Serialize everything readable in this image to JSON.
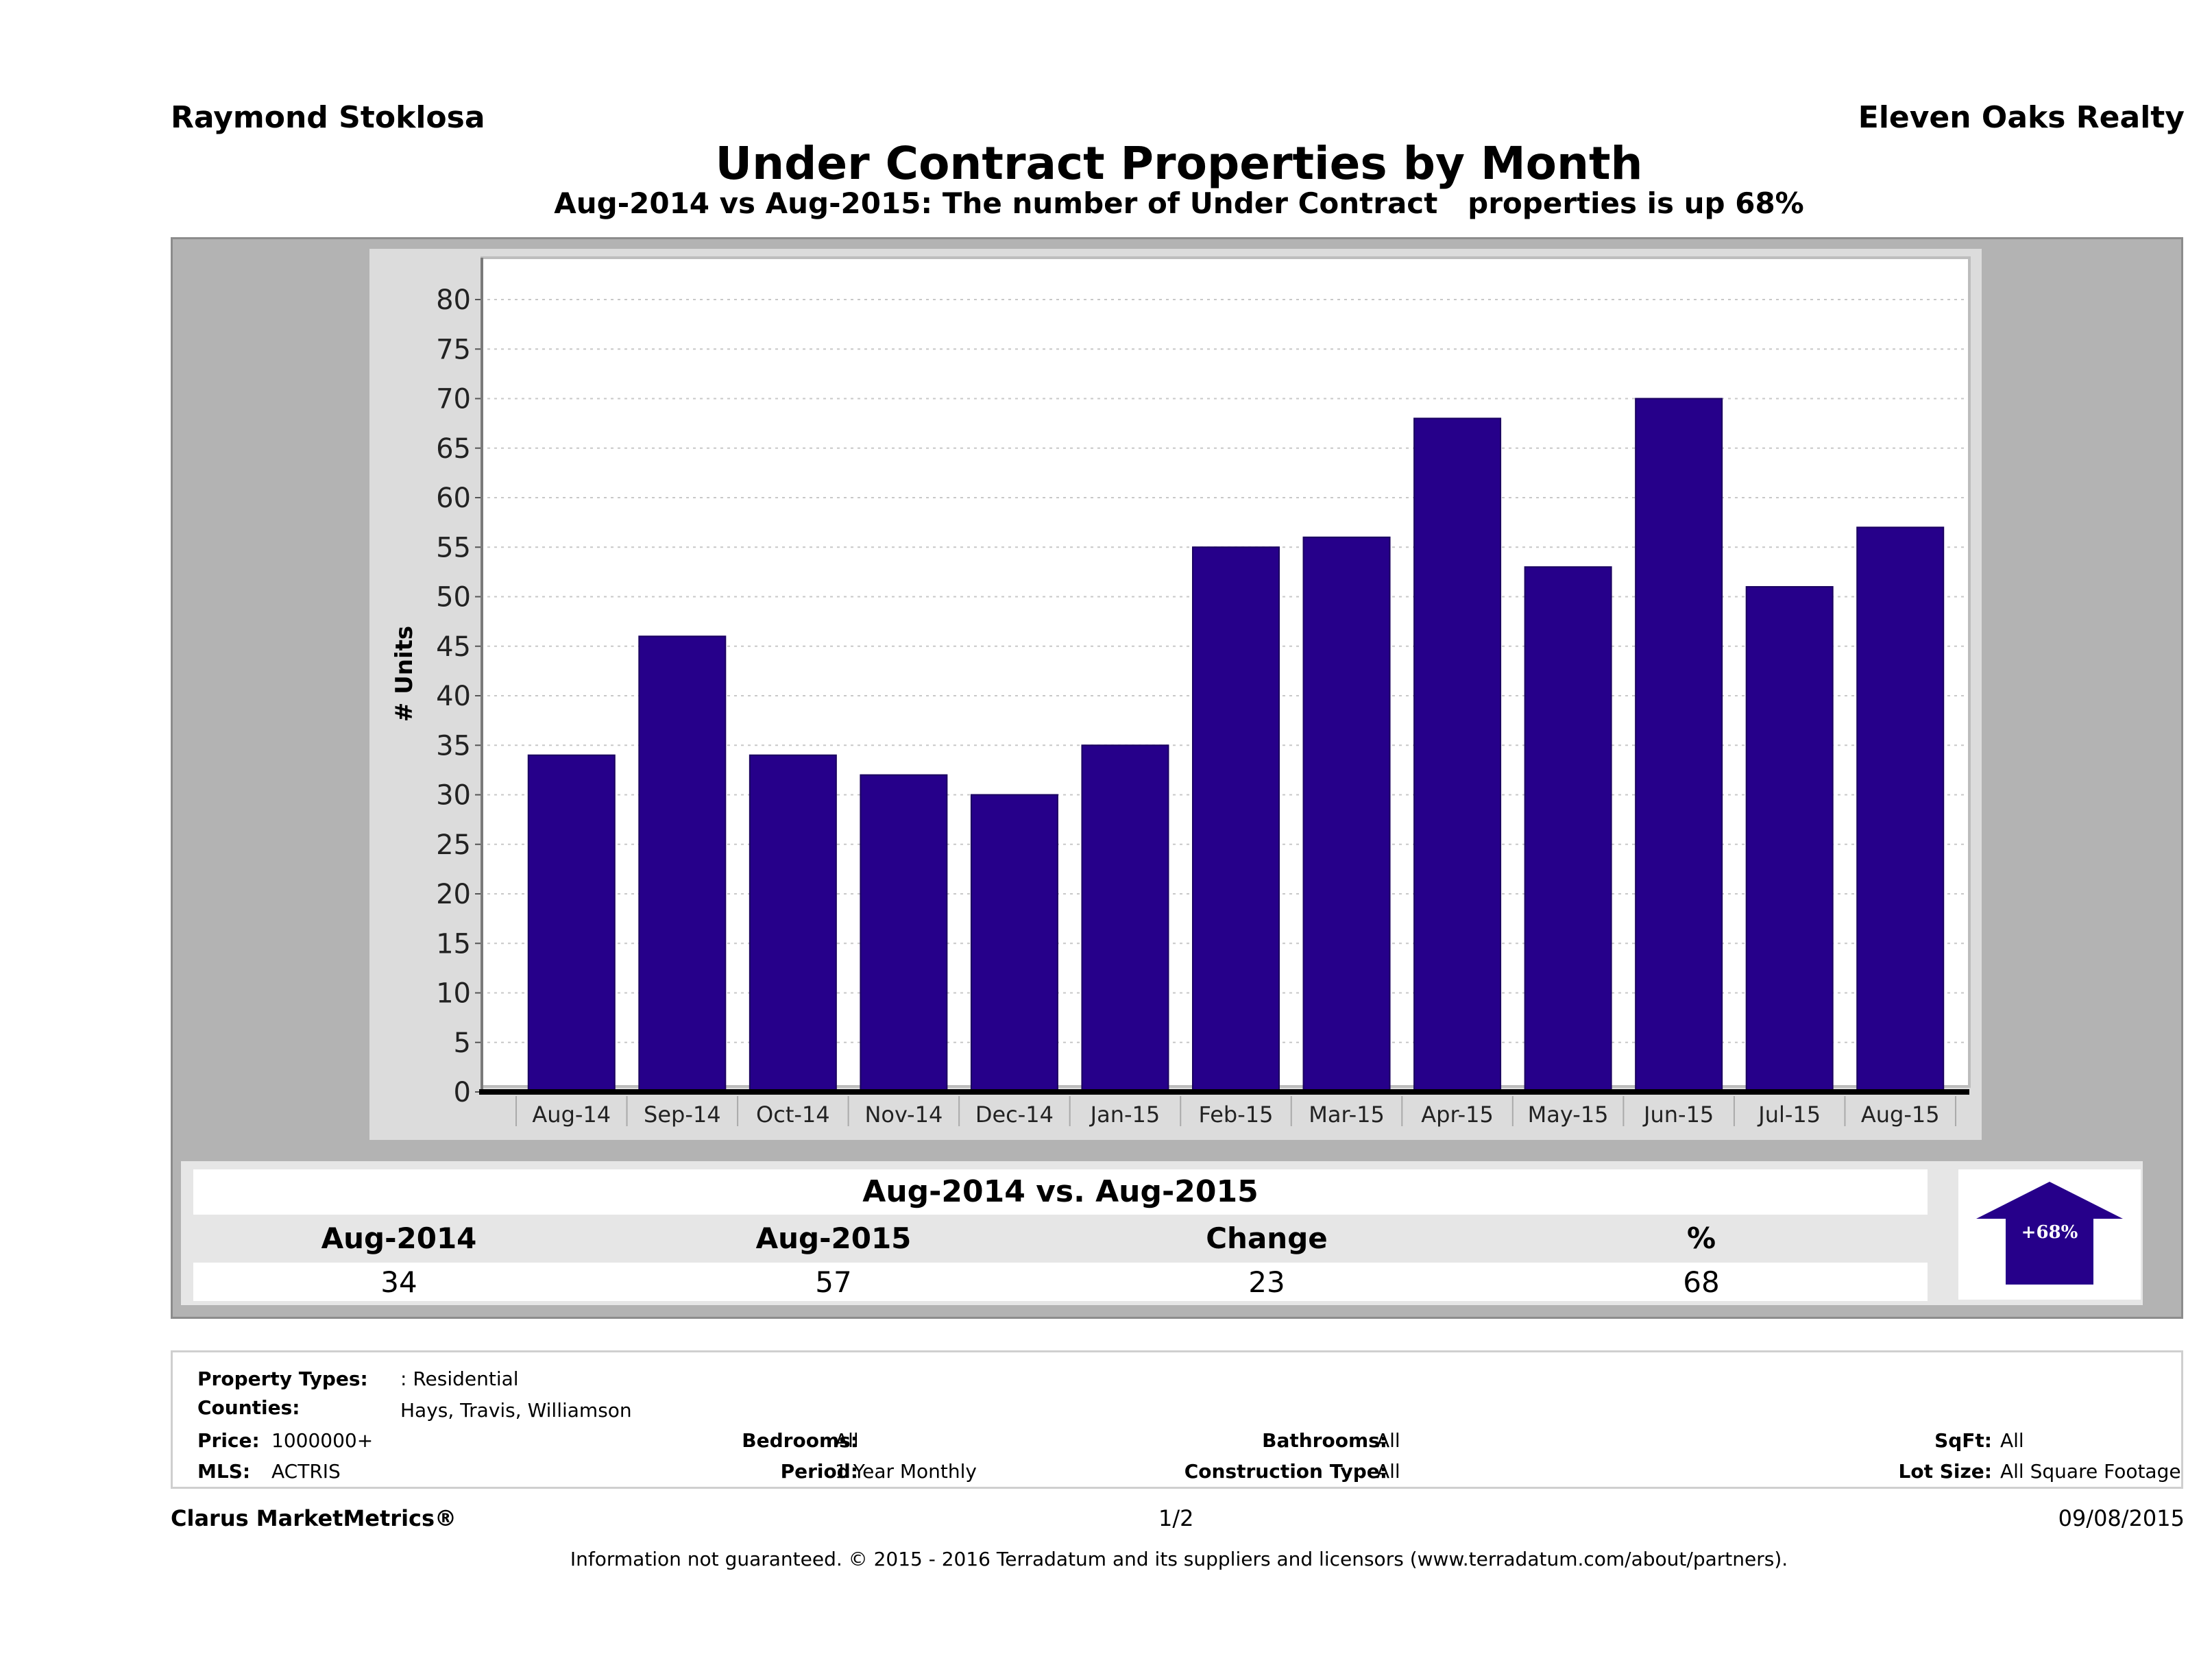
{
  "header": {
    "agent": "Raymond Stoklosa",
    "company": "Eleven Oaks Realty",
    "title": "Under Contract Properties by Month",
    "subtitle": "Aug-2014 vs Aug-2015: The number of Under Contract   properties is up 68%"
  },
  "chart_data": {
    "type": "bar",
    "title": "Under Contract Properties by Month",
    "xlabel": "",
    "ylabel": "# Units",
    "categories": [
      "Aug-14",
      "Sep-14",
      "Oct-14",
      "Nov-14",
      "Dec-14",
      "Jan-15",
      "Feb-15",
      "Mar-15",
      "Apr-15",
      "May-15",
      "Jun-15",
      "Jul-15",
      "Aug-15"
    ],
    "values": [
      34,
      46,
      34,
      32,
      30,
      35,
      55,
      56,
      68,
      53,
      70,
      51,
      57
    ],
    "ylim": [
      0,
      80
    ],
    "yticks": [
      0,
      5,
      10,
      15,
      20,
      25,
      30,
      35,
      40,
      45,
      50,
      55,
      60,
      65,
      70,
      75,
      80
    ],
    "grid": true,
    "legend": "none",
    "bar_color": "#26008a"
  },
  "summary": {
    "title": "Aug-2014 vs. Aug-2015",
    "headers": [
      "Aug-2014",
      "Aug-2015",
      "Change",
      "%"
    ],
    "values": [
      "34",
      "57",
      "23",
      "68"
    ],
    "badge": "+68%",
    "badge_direction": "up",
    "badge_color": "#26008a"
  },
  "details": {
    "property_types_label": "Property Types:",
    "property_types": ": Residential",
    "counties_label": "Counties:",
    "counties": "Hays, Travis, Williamson",
    "price_label": "Price:",
    "price": "1000000+",
    "mls_label": "MLS:",
    "mls": "ACTRIS",
    "bedrooms_label": "Bedrooms:",
    "bedrooms": "All",
    "period_label": "Period:",
    "period": "1 Year Monthly",
    "bathrooms_label": "Bathrooms:",
    "bathrooms": "All",
    "construction_label": "Construction Type:",
    "construction": "All",
    "sqft_label": "SqFt:",
    "sqft": "All",
    "lot_size_label": "Lot Size:",
    "lot_size": "All Square Footage"
  },
  "footer": {
    "brand": "Clarus MarketMetrics®",
    "page": "1/2",
    "date": "09/08/2015",
    "disclaimer": "Information not guaranteed. © 2015 - 2016 Terradatum and its suppliers and licensors (www.terradatum.com/about/partners)."
  }
}
